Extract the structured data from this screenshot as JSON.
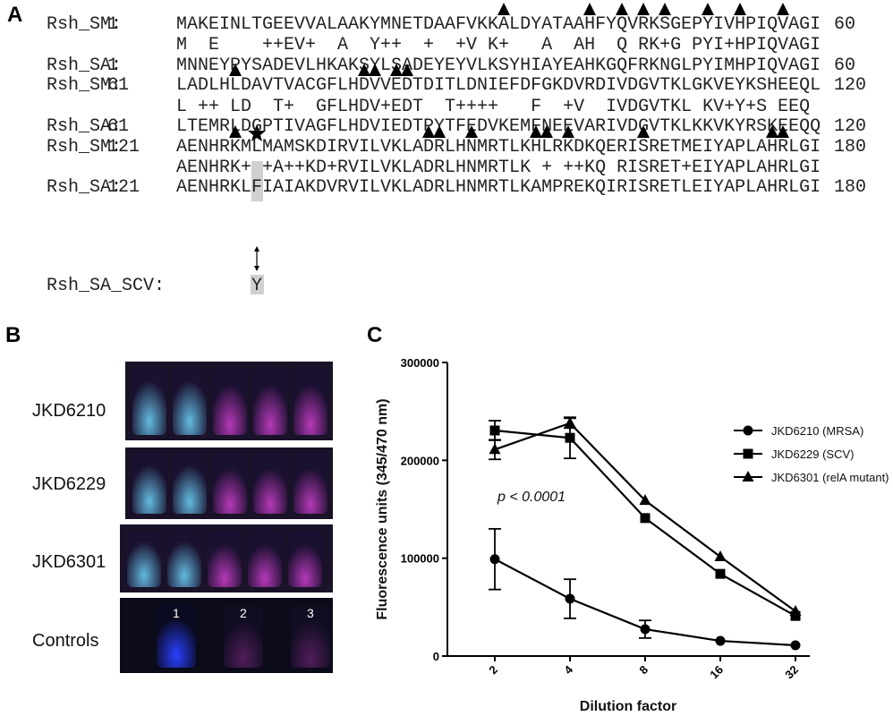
{
  "alignment": {
    "label": "A",
    "blocks": [
      {
        "sm": {
          "name": "Rsh_SM:",
          "start": "1",
          "seq": "MAKEINLTGEEVVALAAKYMNETDAAFVKKALDYATAAHFYQVRKSGEPYIVHPIQVAGI",
          "end": "60"
        },
        "match": "M  E    ++EV+  A  Y++  +  +V K+   A  AH  Q RK+G PYI+HPIQVAGI",
        "sa": {
          "name": "Rsh_SA:",
          "start": "1",
          "seq": "MNNEYPYSADEVLHKAKSYLSADEYEYVLKSYHIAYEAHKGQFRKNGLPYIMHPIQVAGI",
          "end": "60"
        }
      },
      {
        "sm": {
          "name": "Rsh_SM:",
          "start": "61",
          "seq": "LADLHLDAVTVACGFLHDVVEDTDITLDNIEFDFGKDVRDIVDGVTKLGKVEYKSHEEQL",
          "end": "120"
        },
        "match": "L ++ LD  T+  GFLHDV+EDT  T++++   F  +V  IVDGVTKL KV+Y+S EEQ ",
        "sa": {
          "name": "Rsh_SA:",
          "start": "61",
          "seq": "LTEMRLDGPTIVAGFLHDVIEDTPYTFEDVKEMFNEEVARIVDGVTKLKKVKYRSKEEQQ",
          "end": "120"
        }
      },
      {
        "sm": {
          "name": "Rsh_SM:",
          "start": "121",
          "seq": "AENHRKMLMAMSKDIRVILVKLADRLHNMRTLKHLRKDKQERISRETMEIYAPLAHRLGI",
          "end": "180"
        },
        "match": "AENHRK+ +A++KD+RVILVKLADRLHNMRTLK + ++KQ RISRET+EIYAPLAHRLGI",
        "sa": {
          "name": "Rsh_SA:",
          "start": "121",
          "seq": "AENHRKLFIAIAKDVRVILVKLADRLHNMRTLKAMPREKQIRISRETLEIYAPLAHRLGI",
          "end": "180"
        }
      }
    ],
    "scv": {
      "name": "Rsh_SA_SCV:",
      "residue": "Y"
    }
  },
  "photos": {
    "label": "B",
    "rows": [
      "JKD6210",
      "JKD6229",
      "JKD6301",
      "Controls"
    ],
    "control_numbers": [
      "1",
      "2",
      "3"
    ]
  },
  "panel_c_label": "C",
  "chart_data": {
    "type": "line",
    "y_label": "Fluorescence units (345/470 nm)",
    "x_label": "Dilution factor",
    "annotation": "p < 0.0001",
    "categories": [
      "2",
      "4",
      "8",
      "16",
      "32"
    ],
    "ylim": [
      0,
      300000
    ],
    "yticks": [
      0,
      100000,
      200000,
      300000
    ],
    "legend": "right",
    "series": [
      {
        "name": "JKD6210 (MRSA)",
        "color": "#000000",
        "marker": "circle",
        "values": [
          99000,
          58500,
          27400,
          15500,
          11000
        ],
        "errors": [
          31000,
          20000,
          9000,
          null,
          null
        ]
      },
      {
        "name": "JKD6229 (SCV)",
        "color": "#000000",
        "marker": "square",
        "values": [
          230500,
          223000,
          141000,
          84000,
          41000
        ],
        "errors": [
          10000,
          21000,
          null,
          null,
          null
        ]
      },
      {
        "name": "JKD6301 (relA mutant)",
        "color": "#000000",
        "marker": "triangle",
        "values": [
          211000,
          238000,
          159000,
          101500,
          45700
        ],
        "errors": [
          10000,
          5000,
          null,
          null,
          null
        ]
      }
    ]
  }
}
